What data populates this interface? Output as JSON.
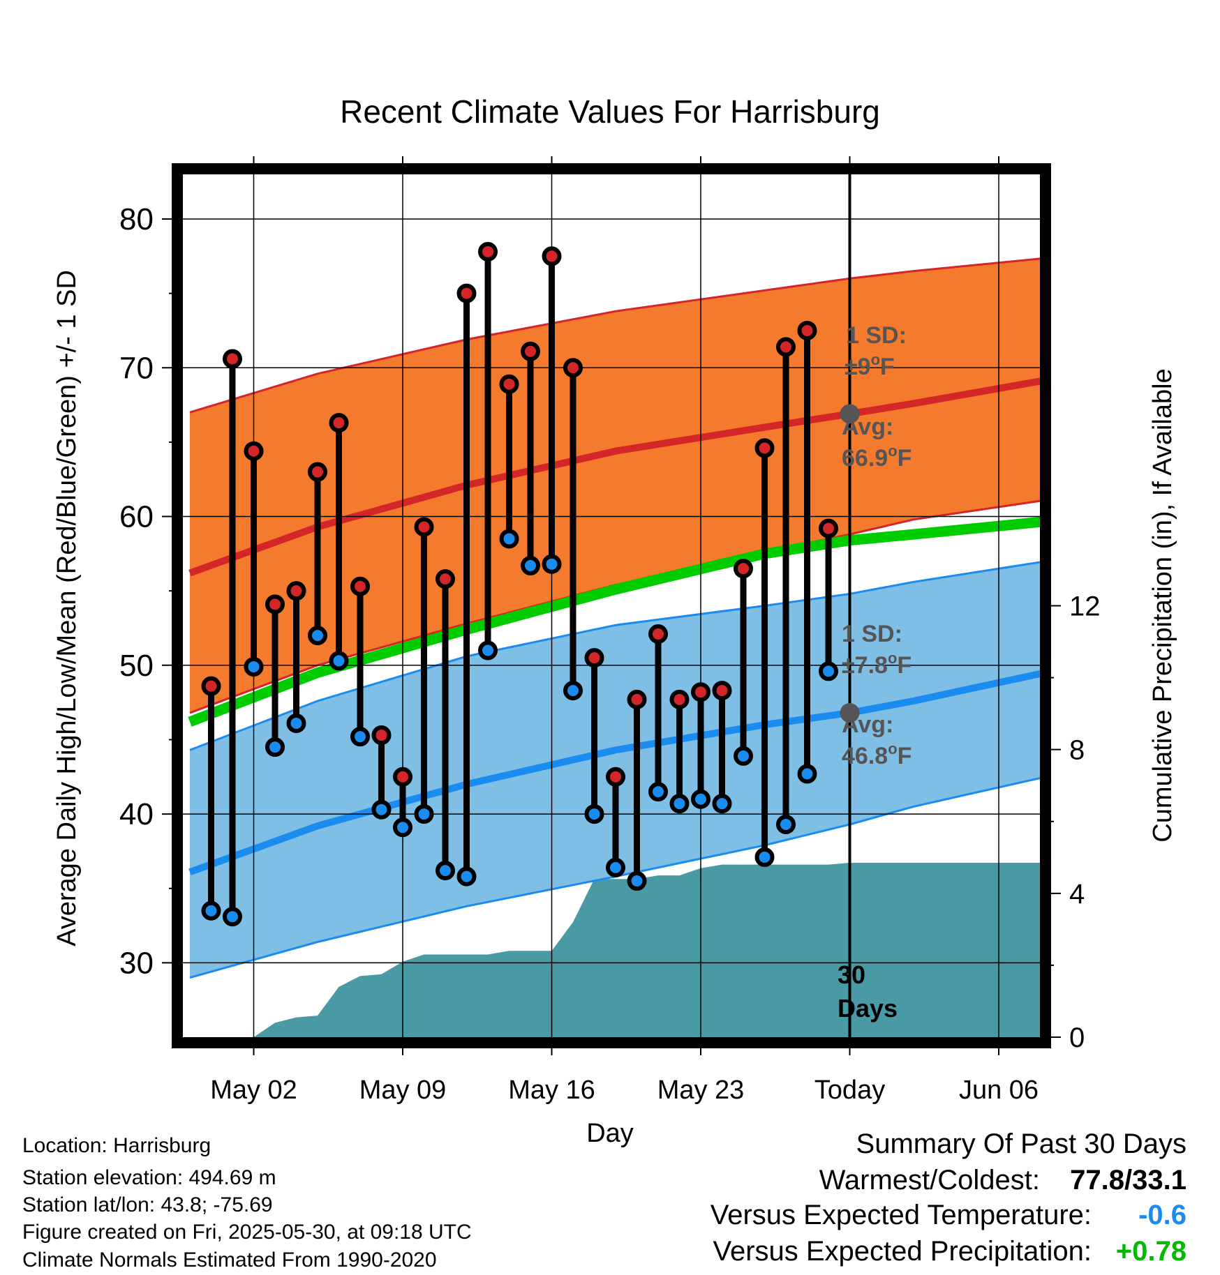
{
  "chart_data": {
    "type": "line",
    "title": "Recent Climate Values For Harrisburg",
    "xlabel": "Day",
    "ylabel": "Average Daily High/Low/Mean (Red/Blue/Green) +/- 1 SD",
    "y2label": "Cumulative Precipitation (in), If Available",
    "ylim": [
      25,
      83
    ],
    "y_ticks": [
      30,
      40,
      50,
      60,
      70,
      80
    ],
    "y_minor_step": 5,
    "y2lim": [
      0,
      24
    ],
    "y2_ticks": [
      0,
      4,
      8,
      12
    ],
    "x_range": [
      "2025-04-29",
      "2025-06-09"
    ],
    "x_ticks": [
      {
        "date": "2025-05-02",
        "label": "May 02"
      },
      {
        "date": "2025-05-09",
        "label": "May 09"
      },
      {
        "date": "2025-05-16",
        "label": "May 16"
      },
      {
        "date": "2025-05-23",
        "label": "May 23"
      },
      {
        "date": "2025-05-30",
        "label": "Today"
      },
      {
        "date": "2025-06-06",
        "label": "Jun 06"
      }
    ],
    "grid": true,
    "today": "2025-05-30",
    "today_label": "30 Days",
    "normals": {
      "x": [
        "2025-04-29",
        "2025-05-05",
        "2025-05-12",
        "2025-05-19",
        "2025-05-26",
        "2025-05-30",
        "2025-06-02",
        "2025-06-09"
      ],
      "avg_high": [
        56.2,
        59.3,
        62.1,
        64.4,
        66.0,
        66.9,
        67.6,
        69.4
      ],
      "high_sd_upper": [
        67.0,
        69.6,
        71.9,
        73.8,
        75.2,
        76.0,
        76.5,
        77.5
      ],
      "high_sd_lower": [
        46.8,
        50.0,
        52.8,
        55.4,
        57.6,
        58.8,
        59.8,
        61.3
      ],
      "avg_mean": [
        46.2,
        49.5,
        52.4,
        55.1,
        57.5,
        58.4,
        58.8,
        59.8
      ],
      "avg_low": [
        36.1,
        39.2,
        42.0,
        44.3,
        46.0,
        46.8,
        47.6,
        49.8
      ],
      "low_sd_upper": [
        44.3,
        47.6,
        50.6,
        52.7,
        54.0,
        54.8,
        55.6,
        57.2
      ],
      "low_sd_lower": [
        29.0,
        31.4,
        33.8,
        35.8,
        37.9,
        39.3,
        40.5,
        42.8
      ]
    },
    "high_sd_label": "1 SD:",
    "high_sd_value": "±9",
    "high_avg_label": "Avg:",
    "high_avg_value": "66.9",
    "low_sd_label": "1 SD:",
    "low_sd_value": "±7.8",
    "low_avg_label": "Avg:",
    "low_avg_value": "46.8",
    "unit_degree": "o",
    "unit_letter": "F",
    "daily": {
      "x": [
        "2025-04-30",
        "2025-05-01",
        "2025-05-02",
        "2025-05-03",
        "2025-05-04",
        "2025-05-05",
        "2025-05-06",
        "2025-05-07",
        "2025-05-08",
        "2025-05-09",
        "2025-05-10",
        "2025-05-11",
        "2025-05-12",
        "2025-05-13",
        "2025-05-14",
        "2025-05-15",
        "2025-05-16",
        "2025-05-17",
        "2025-05-18",
        "2025-05-19",
        "2025-05-20",
        "2025-05-21",
        "2025-05-22",
        "2025-05-23",
        "2025-05-24",
        "2025-05-25",
        "2025-05-26",
        "2025-05-27",
        "2025-05-28",
        "2025-05-29"
      ],
      "high": [
        48.6,
        70.6,
        64.4,
        54.1,
        55.0,
        63.0,
        66.3,
        55.3,
        45.3,
        42.5,
        59.3,
        55.8,
        75.0,
        77.8,
        68.9,
        71.1,
        77.5,
        70.0,
        50.5,
        42.5,
        47.7,
        52.1,
        47.7,
        48.2,
        48.3,
        56.5,
        64.6,
        71.4,
        72.5,
        59.2
      ],
      "low": [
        33.5,
        33.1,
        49.9,
        44.5,
        46.1,
        52.0,
        50.3,
        45.2,
        40.3,
        39.1,
        40.0,
        36.2,
        35.8,
        51.0,
        58.5,
        56.7,
        56.8,
        48.3,
        40.0,
        36.4,
        35.5,
        41.5,
        40.7,
        41.0,
        40.7,
        43.9,
        37.1,
        39.3,
        42.7,
        49.6
      ]
    },
    "precip": {
      "x": [
        "2025-05-02",
        "2025-05-03",
        "2025-05-04",
        "2025-05-05",
        "2025-05-06",
        "2025-05-07",
        "2025-05-08",
        "2025-05-09",
        "2025-05-10",
        "2025-05-11",
        "2025-05-12",
        "2025-05-13",
        "2025-05-14",
        "2025-05-15",
        "2025-05-16",
        "2025-05-17",
        "2025-05-18",
        "2025-05-19",
        "2025-05-20",
        "2025-05-21",
        "2025-05-22",
        "2025-05-23",
        "2025-05-24",
        "2025-05-25",
        "2025-05-26",
        "2025-05-27",
        "2025-05-28",
        "2025-05-29",
        "2025-05-30",
        "2025-06-09"
      ],
      "values": [
        0.0,
        0.4,
        0.55,
        0.6,
        1.4,
        1.7,
        1.75,
        2.1,
        2.3,
        2.3,
        2.3,
        2.3,
        2.4,
        2.4,
        2.4,
        3.2,
        4.4,
        4.4,
        4.4,
        4.5,
        4.5,
        4.7,
        4.8,
        4.8,
        4.8,
        4.8,
        4.8,
        4.8,
        4.85,
        4.85
      ]
    },
    "colors": {
      "high_band": "#f47a2e",
      "high_band_edge": "#d42528",
      "avg_high": "#d42528",
      "avg_mean": "#00cc00",
      "low_band": "#7fbfe6",
      "low_band_edge": "#1a8cf0",
      "avg_low": "#1a8cf0",
      "precip": "#4a9aa5",
      "high_marker": "#d42528",
      "low_marker": "#1a8cf0",
      "annotation": "#555555"
    }
  },
  "info": {
    "location": "Location: Harrisburg",
    "elevation": "Station elevation: 494.69 m",
    "latlon": "Station lat/lon: 43.8; -75.69",
    "created": "Figure created on Fri, 2025-05-30, at 09:18 UTC",
    "normals": "Climate Normals Estimated From 1990-2020"
  },
  "summary": {
    "title": "Summary Of Past 30 Days",
    "warmest_label": "Warmest/Coldest:",
    "warmest_value": "77.8/33.1",
    "temp_label": "Versus Expected Temperature:",
    "temp_value": "-0.6",
    "temp_color": "#1a8cf0",
    "precip_label": "Versus Expected Precipitation:",
    "precip_value": "+0.78",
    "precip_color": "#00bb00"
  }
}
